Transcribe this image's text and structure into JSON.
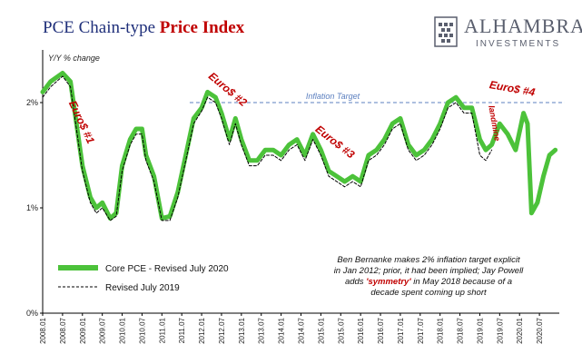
{
  "chart_data": {
    "type": "line",
    "title": {
      "prefix": "PCE Chain-type ",
      "highlight": "Price Index"
    },
    "ylabel": "Y/Y % change",
    "ylim": [
      0,
      2.5
    ],
    "y_ticks": [
      "0%",
      "1%",
      "2%"
    ],
    "x_ticks": [
      "2008.01",
      "2008.07",
      "2009.01",
      "2009.07",
      "2010.01",
      "2010.07",
      "2011.01",
      "2011.07",
      "2012.01",
      "2012.07",
      "2013.01",
      "2013.07",
      "2014.01",
      "2014.07",
      "2015.01",
      "2015.07",
      "2016.01",
      "2016.07",
      "2017.01",
      "2017.07",
      "2018.01",
      "2018.07",
      "2019.01",
      "2019.07",
      "2020.01",
      "2020.07"
    ],
    "reference_line": {
      "label": "Inflation Target",
      "value": 2.0
    },
    "series": [
      {
        "name": "Core PCE - Revised July 2020",
        "color": "#4cc23a",
        "points": [
          [
            2008.0,
            2.1
          ],
          [
            2008.2,
            2.2
          ],
          [
            2008.5,
            2.28
          ],
          [
            2008.7,
            2.2
          ],
          [
            2008.85,
            1.8
          ],
          [
            2009.0,
            1.4
          ],
          [
            2009.2,
            1.1
          ],
          [
            2009.35,
            1.0
          ],
          [
            2009.5,
            1.05
          ],
          [
            2009.7,
            0.9
          ],
          [
            2009.85,
            0.95
          ],
          [
            2010.0,
            1.4
          ],
          [
            2010.2,
            1.65
          ],
          [
            2010.35,
            1.75
          ],
          [
            2010.5,
            1.75
          ],
          [
            2010.6,
            1.5
          ],
          [
            2010.8,
            1.3
          ],
          [
            2011.0,
            0.9
          ],
          [
            2011.2,
            0.92
          ],
          [
            2011.4,
            1.15
          ],
          [
            2011.6,
            1.5
          ],
          [
            2011.8,
            1.85
          ],
          [
            2012.0,
            1.95
          ],
          [
            2012.15,
            2.1
          ],
          [
            2012.35,
            2.05
          ],
          [
            2012.5,
            1.9
          ],
          [
            2012.7,
            1.65
          ],
          [
            2012.85,
            1.85
          ],
          [
            2013.0,
            1.65
          ],
          [
            2013.2,
            1.45
          ],
          [
            2013.4,
            1.45
          ],
          [
            2013.6,
            1.55
          ],
          [
            2013.8,
            1.55
          ],
          [
            2014.0,
            1.5
          ],
          [
            2014.2,
            1.6
          ],
          [
            2014.4,
            1.65
          ],
          [
            2014.6,
            1.5
          ],
          [
            2014.8,
            1.7
          ],
          [
            2015.0,
            1.55
          ],
          [
            2015.2,
            1.35
          ],
          [
            2015.4,
            1.3
          ],
          [
            2015.6,
            1.25
          ],
          [
            2015.8,
            1.3
          ],
          [
            2016.0,
            1.25
          ],
          [
            2016.2,
            1.5
          ],
          [
            2016.4,
            1.55
          ],
          [
            2016.6,
            1.65
          ],
          [
            2016.8,
            1.8
          ],
          [
            2017.0,
            1.85
          ],
          [
            2017.2,
            1.6
          ],
          [
            2017.4,
            1.5
          ],
          [
            2017.6,
            1.55
          ],
          [
            2017.8,
            1.65
          ],
          [
            2018.0,
            1.8
          ],
          [
            2018.2,
            2.0
          ],
          [
            2018.4,
            2.05
          ],
          [
            2018.6,
            1.95
          ],
          [
            2018.8,
            1.95
          ],
          [
            2019.0,
            1.65
          ],
          [
            2019.15,
            1.55
          ],
          [
            2019.3,
            1.6
          ],
          [
            2019.5,
            1.8
          ],
          [
            2019.7,
            1.7
          ],
          [
            2019.9,
            1.55
          ],
          [
            2020.1,
            1.9
          ],
          [
            2020.2,
            1.8
          ],
          [
            2020.3,
            0.95
          ],
          [
            2020.45,
            1.05
          ],
          [
            2020.6,
            1.3
          ],
          [
            2020.75,
            1.5
          ],
          [
            2020.9,
            1.55
          ]
        ]
      },
      {
        "name": "Revised July 2019",
        "color": "#000000",
        "points": [
          [
            2008.0,
            2.05
          ],
          [
            2008.2,
            2.15
          ],
          [
            2008.5,
            2.25
          ],
          [
            2008.7,
            2.15
          ],
          [
            2008.85,
            1.75
          ],
          [
            2009.0,
            1.35
          ],
          [
            2009.2,
            1.05
          ],
          [
            2009.35,
            0.95
          ],
          [
            2009.5,
            1.0
          ],
          [
            2009.7,
            0.88
          ],
          [
            2009.85,
            0.92
          ],
          [
            2010.0,
            1.35
          ],
          [
            2010.2,
            1.6
          ],
          [
            2010.35,
            1.7
          ],
          [
            2010.5,
            1.7
          ],
          [
            2010.6,
            1.45
          ],
          [
            2010.8,
            1.25
          ],
          [
            2011.0,
            0.88
          ],
          [
            2011.2,
            0.88
          ],
          [
            2011.4,
            1.1
          ],
          [
            2011.6,
            1.45
          ],
          [
            2011.8,
            1.8
          ],
          [
            2012.0,
            1.92
          ],
          [
            2012.15,
            2.05
          ],
          [
            2012.35,
            2.0
          ],
          [
            2012.5,
            1.85
          ],
          [
            2012.7,
            1.6
          ],
          [
            2012.85,
            1.8
          ],
          [
            2013.0,
            1.6
          ],
          [
            2013.2,
            1.4
          ],
          [
            2013.4,
            1.4
          ],
          [
            2013.6,
            1.5
          ],
          [
            2013.8,
            1.5
          ],
          [
            2014.0,
            1.45
          ],
          [
            2014.2,
            1.55
          ],
          [
            2014.4,
            1.6
          ],
          [
            2014.6,
            1.45
          ],
          [
            2014.8,
            1.65
          ],
          [
            2015.0,
            1.5
          ],
          [
            2015.2,
            1.3
          ],
          [
            2015.4,
            1.25
          ],
          [
            2015.6,
            1.2
          ],
          [
            2015.8,
            1.25
          ],
          [
            2016.0,
            1.2
          ],
          [
            2016.2,
            1.45
          ],
          [
            2016.4,
            1.5
          ],
          [
            2016.6,
            1.6
          ],
          [
            2016.8,
            1.75
          ],
          [
            2017.0,
            1.8
          ],
          [
            2017.2,
            1.55
          ],
          [
            2017.4,
            1.45
          ],
          [
            2017.6,
            1.5
          ],
          [
            2017.8,
            1.6
          ],
          [
            2018.0,
            1.75
          ],
          [
            2018.2,
            1.95
          ],
          [
            2018.4,
            2.0
          ],
          [
            2018.6,
            1.9
          ],
          [
            2018.8,
            1.9
          ],
          [
            2019.0,
            1.5
          ],
          [
            2019.15,
            1.45
          ],
          [
            2019.3,
            1.55
          ]
        ]
      }
    ],
    "annotations": [
      {
        "text": "Euro$ #1",
        "x": 2008.9,
        "y": 1.8,
        "rotate": 65
      },
      {
        "text": "Euro$ #2",
        "x": 2012.6,
        "y": 2.1,
        "rotate": 40
      },
      {
        "text": "Euro$ #3",
        "x": 2015.3,
        "y": 1.6,
        "rotate": 38
      },
      {
        "text": "Euro$ #4",
        "x": 2019.8,
        "y": 2.1,
        "rotate": 10
      },
      {
        "text": "landmine",
        "x": 2019.3,
        "y": 1.8,
        "rotate": 80
      }
    ],
    "note_lines": [
      [
        {
          "t": "Ben Bernanke makes 2% inflation target explicit"
        }
      ],
      [
        {
          "t": "in Jan 2012; prior, it had been implied; Jay Powell"
        }
      ],
      [
        {
          "t": "adds "
        },
        {
          "t": "'symmetry'",
          "red": true
        },
        {
          "t": " in May 2018 because of a"
        }
      ],
      [
        {
          "t": "decade spent coming up short"
        }
      ]
    ]
  },
  "logo": {
    "name": "ALHAMBRA",
    "sub": "INVESTMENTS"
  }
}
